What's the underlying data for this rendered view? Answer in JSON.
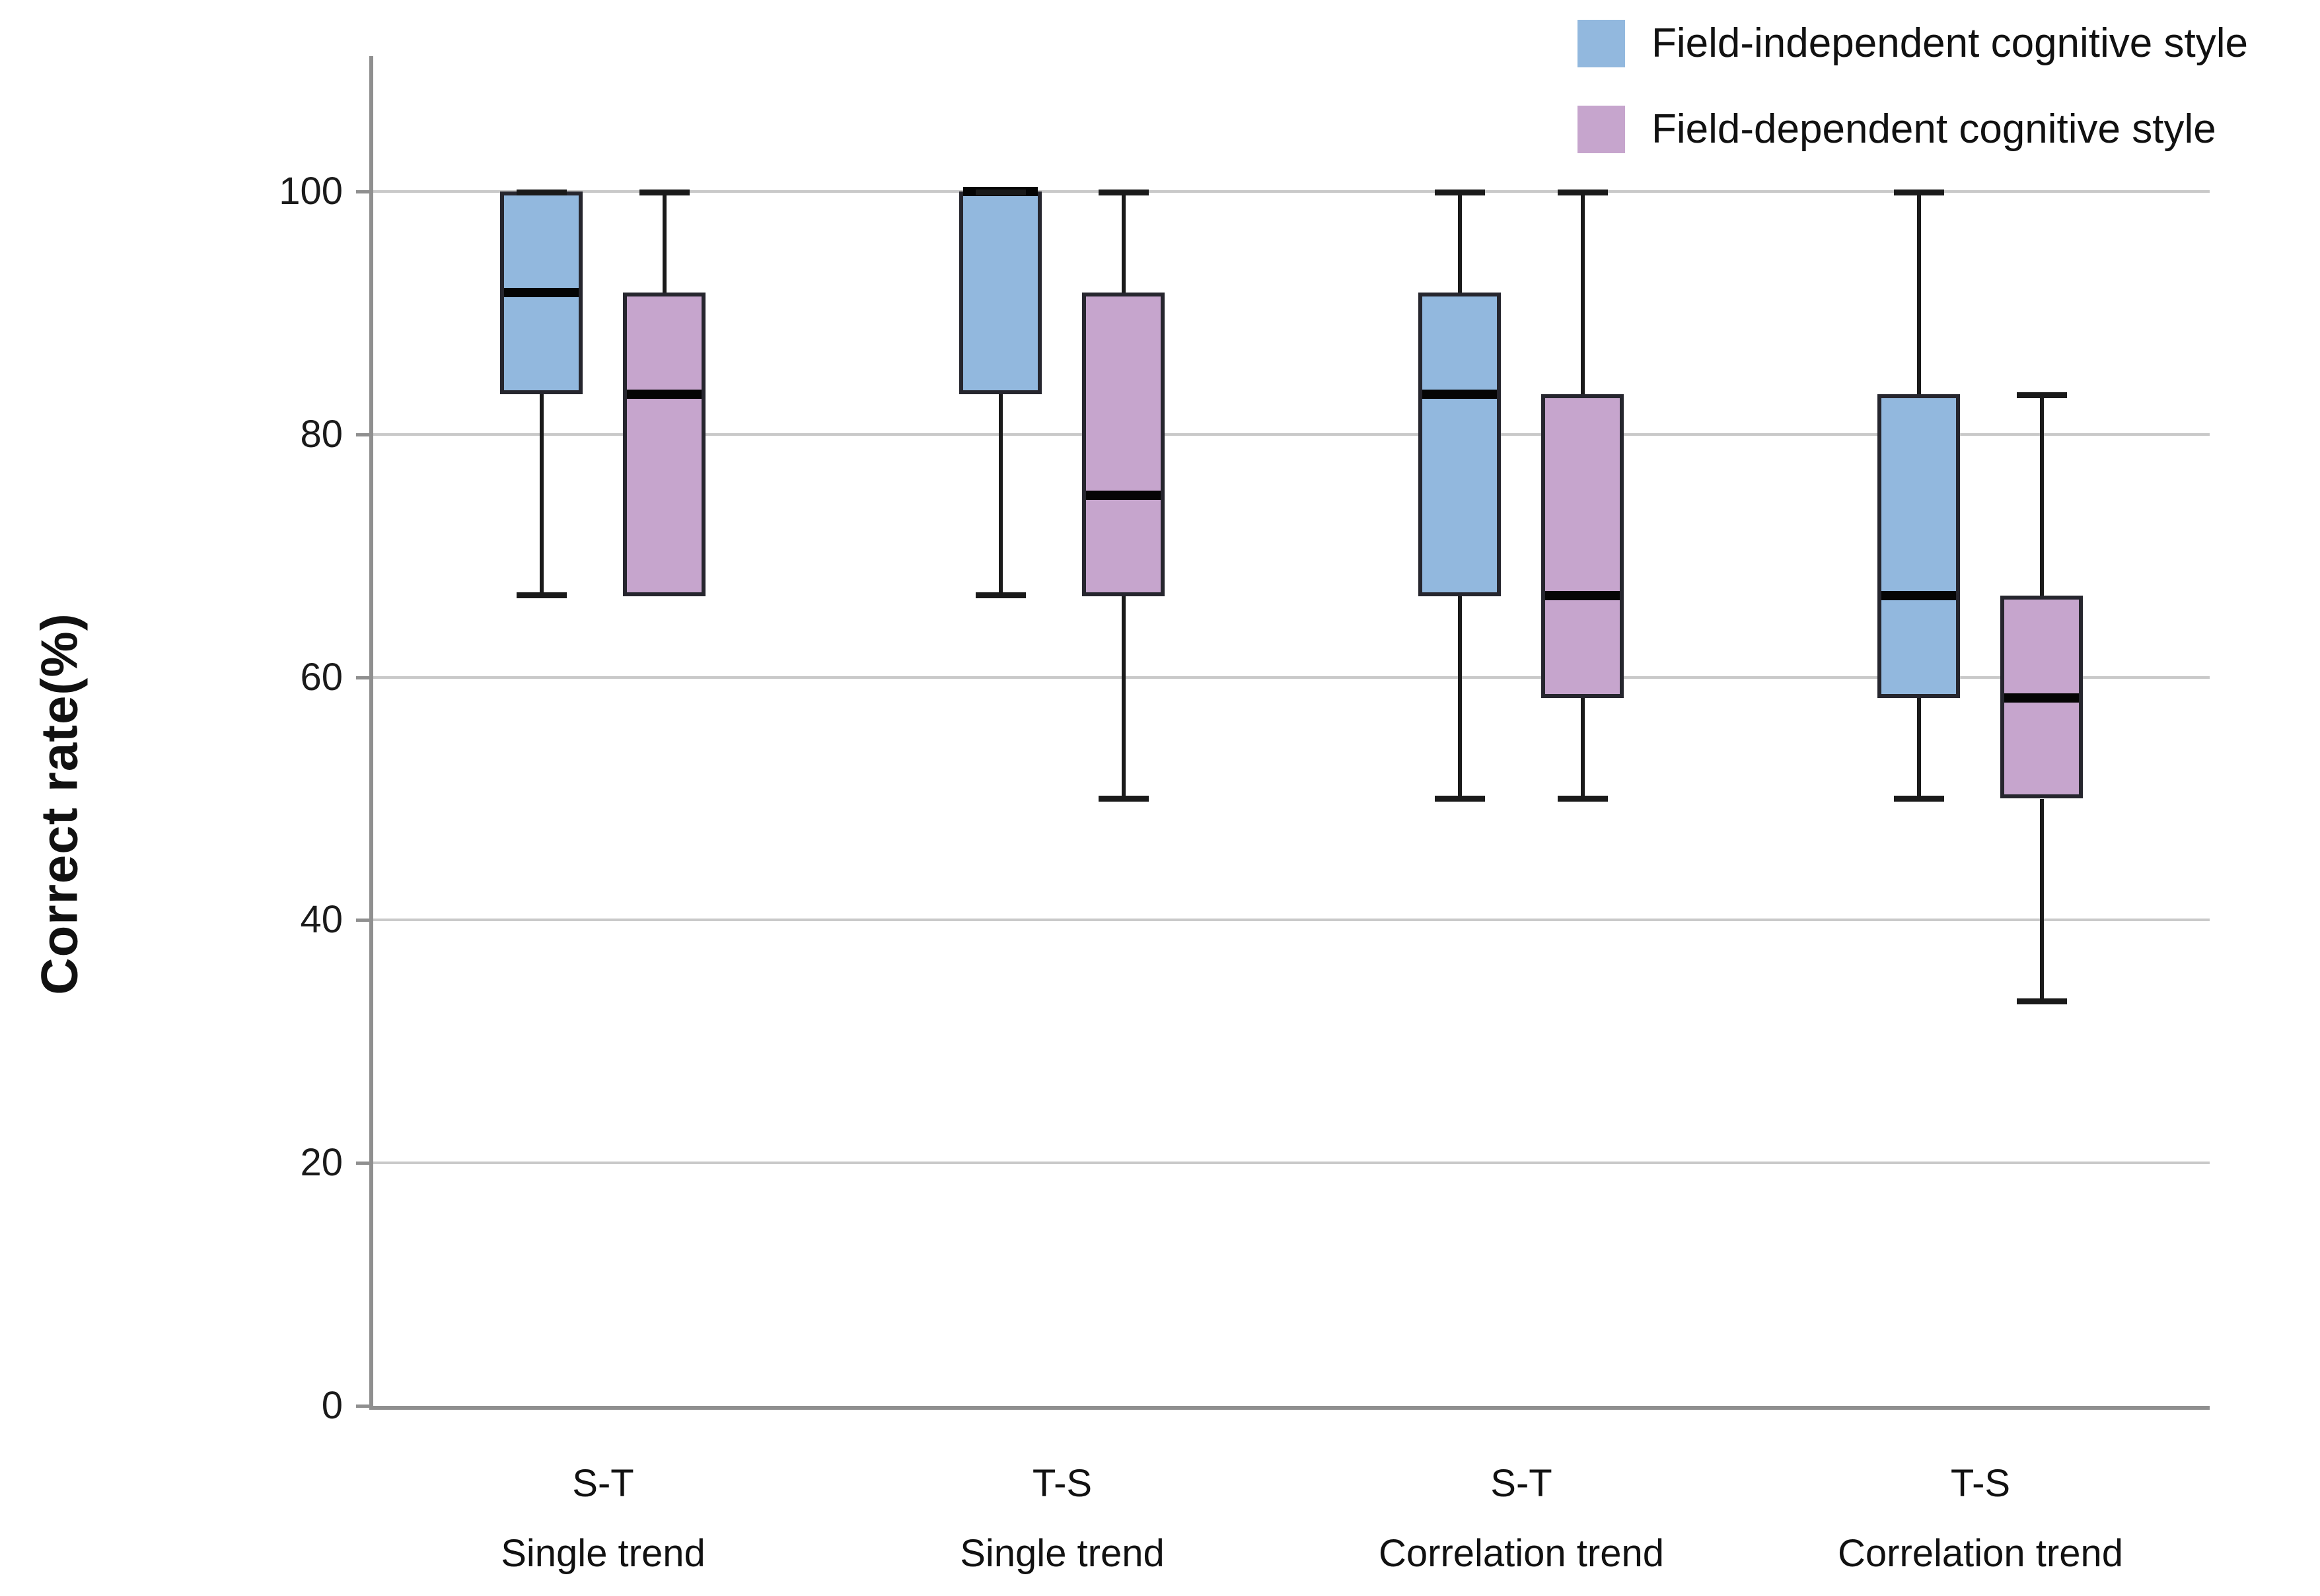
{
  "chart_data": {
    "type": "boxplot",
    "title": "",
    "ylabel": "Correct rate(%)",
    "xlabel": "",
    "ylim": [
      0,
      110
    ],
    "y_ticks": [
      0,
      20,
      40,
      60,
      80,
      100
    ],
    "grid": "horizontal",
    "legend_position": "top-right",
    "categories": [
      {
        "line1": "S-T",
        "line2": "Single trend"
      },
      {
        "line1": "T-S",
        "line2": "Single trend"
      },
      {
        "line1": "S-T",
        "line2": "Correlation trend"
      },
      {
        "line1": "T-S",
        "line2": "Correlation trend"
      }
    ],
    "series": [
      {
        "name": "Field-independent cognitive style",
        "color": "#92B8DE",
        "boxes": [
          {
            "min": 66.7,
            "q1": 83.3,
            "median": 91.7,
            "q3": 100,
            "max": 100,
            "cap_top": true,
            "cap_bottom": true
          },
          {
            "min": 66.7,
            "q1": 83.3,
            "median": 100,
            "q3": 100,
            "max": 100,
            "cap_top": true,
            "cap_bottom": true
          },
          {
            "min": 50,
            "q1": 66.7,
            "median": 83.3,
            "q3": 91.7,
            "max": 100,
            "cap_top": true,
            "cap_bottom": true
          },
          {
            "min": 50,
            "q1": 58.3,
            "median": 66.7,
            "q3": 83.3,
            "max": 100,
            "cap_top": true,
            "cap_bottom": true
          }
        ]
      },
      {
        "name": "Field-dependent cognitive style",
        "color": "#C6A5CD",
        "boxes": [
          {
            "min": 66.7,
            "q1": 66.7,
            "median": 83.3,
            "q3": 91.7,
            "max": 100,
            "cap_top": true,
            "cap_bottom": false
          },
          {
            "min": 50,
            "q1": 66.7,
            "median": 75,
            "q3": 91.7,
            "max": 100,
            "cap_top": true,
            "cap_bottom": true
          },
          {
            "min": 50,
            "q1": 58.3,
            "median": 66.7,
            "q3": 83.3,
            "max": 100,
            "cap_top": true,
            "cap_bottom": true
          },
          {
            "min": 33.3,
            "q1": 50,
            "median": 58.3,
            "q3": 66.7,
            "max": 83.3,
            "cap_top": true,
            "cap_bottom": true
          }
        ]
      }
    ],
    "colors": {
      "box_border": "#26262e",
      "median": "#050505",
      "whisker": "#1a1a1a",
      "gridline": "#c9c9c9",
      "axis": "#8f8f8f",
      "text": "#111111",
      "background": "#ffffff"
    }
  }
}
